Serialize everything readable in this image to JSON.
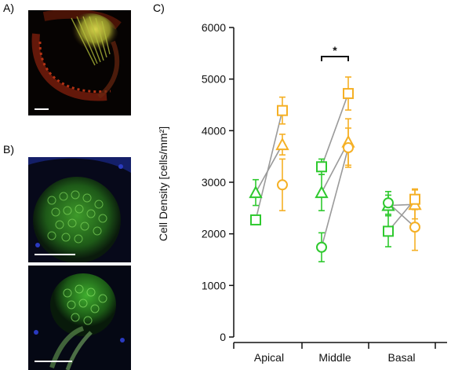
{
  "figure": {
    "panels": [
      "A)",
      "B)",
      "C)"
    ]
  },
  "colors": {
    "green": "#2ec92e",
    "orange": "#f5b025",
    "connector": "#9a9a9a",
    "axis": "#111111"
  },
  "chart_data": {
    "type": "scatter",
    "ylabel": "Cell Density [cells/mm²]",
    "ylim": [
      0,
      6000
    ],
    "yticks": [
      0,
      1000,
      2000,
      3000,
      4000,
      5000,
      6000
    ],
    "categories": [
      "Apical",
      "Middle",
      "Basal"
    ],
    "significance": {
      "category": "Middle",
      "label": "*"
    },
    "series": [
      {
        "marker": "triangle",
        "color": "green",
        "values": [
          2800,
          2800,
          2550
        ],
        "errors": [
          250,
          350,
          200
        ]
      },
      {
        "marker": "square",
        "color": "green",
        "values": [
          2270,
          3300,
          2050
        ],
        "errors": [
          60,
          150,
          300
        ]
      },
      {
        "marker": "circle",
        "color": "green",
        "values": [
          null,
          1740,
          2600
        ],
        "errors": [
          null,
          280,
          220
        ]
      },
      {
        "marker": "triangle",
        "color": "orange",
        "values": [
          3730,
          3780,
          2570
        ],
        "errors": [
          200,
          450,
          280
        ]
      },
      {
        "marker": "square",
        "color": "orange",
        "values": [
          4390,
          4720,
          2670
        ],
        "errors": [
          260,
          320,
          200
        ]
      },
      {
        "marker": "circle",
        "color": "orange",
        "values": [
          2950,
          3670,
          2130
        ],
        "errors": [
          500,
          380,
          450
        ]
      }
    ],
    "pairs": [
      {
        "category": "Apical",
        "from": "triangle",
        "to": "triangle"
      },
      {
        "category": "Apical",
        "from": "square",
        "to": "square"
      },
      {
        "category": "Middle",
        "from": "triangle",
        "to": "triangle"
      },
      {
        "category": "Middle",
        "from": "square",
        "to": "square"
      },
      {
        "category": "Middle",
        "from": "circle",
        "to": "circle"
      },
      {
        "category": "Basal",
        "from": "triangle",
        "to": "triangle"
      },
      {
        "category": "Basal",
        "from": "square",
        "to": "square"
      },
      {
        "category": "Basal",
        "from": "circle",
        "to": "circle"
      }
    ]
  }
}
